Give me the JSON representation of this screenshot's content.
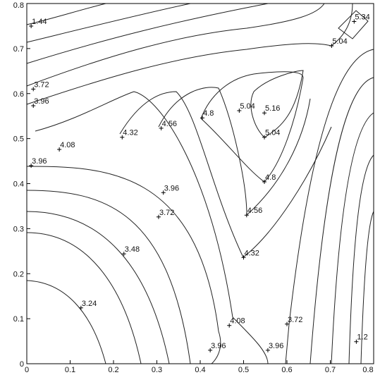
{
  "chart_data": {
    "type": "contour",
    "xlim": [
      0,
      0.8
    ],
    "ylim": [
      0,
      0.8
    ],
    "xticks": [
      0,
      0.1,
      0.2,
      0.3,
      0.4,
      0.5,
      0.6,
      0.7,
      0.8
    ],
    "yticks": [
      0,
      0.1,
      0.2,
      0.3,
      0.4,
      0.5,
      0.6,
      0.7,
      0.8
    ],
    "color": "#000000",
    "contour_labels": [
      {
        "x": 0.01,
        "y": 0.75,
        "level": 1.44
      },
      {
        "x": 0.015,
        "y": 0.61,
        "level": 3.72
      },
      {
        "x": 0.015,
        "y": 0.573,
        "level": 3.96
      },
      {
        "x": 0.075,
        "y": 0.476,
        "level": 4.08
      },
      {
        "x": 0.01,
        "y": 0.44,
        "level": 3.96
      },
      {
        "x": 0.22,
        "y": 0.503,
        "level": 4.32
      },
      {
        "x": 0.31,
        "y": 0.523,
        "level": 4.56
      },
      {
        "x": 0.405,
        "y": 0.546,
        "level": 4.8
      },
      {
        "x": 0.49,
        "y": 0.562,
        "level": 5.04
      },
      {
        "x": 0.548,
        "y": 0.557,
        "level": 5.16
      },
      {
        "x": 0.548,
        "y": 0.503,
        "level": 5.04
      },
      {
        "x": 0.548,
        "y": 0.404,
        "level": 4.8
      },
      {
        "x": 0.507,
        "y": 0.33,
        "level": 4.56
      },
      {
        "x": 0.5,
        "y": 0.236,
        "level": 4.32
      },
      {
        "x": 0.315,
        "y": 0.38,
        "level": 3.96
      },
      {
        "x": 0.304,
        "y": 0.326,
        "level": 3.72
      },
      {
        "x": 0.224,
        "y": 0.244,
        "level": 3.48
      },
      {
        "x": 0.125,
        "y": 0.124,
        "level": 3.24
      },
      {
        "x": 0.467,
        "y": 0.085,
        "level": 4.08
      },
      {
        "x": 0.423,
        "y": 0.03,
        "level": 3.96
      },
      {
        "x": 0.556,
        "y": 0.03,
        "level": 3.96
      },
      {
        "x": 0.6,
        "y": 0.088,
        "level": 3.72
      },
      {
        "x": 0.76,
        "y": 0.049,
        "level": 1.2
      },
      {
        "x": 0.703,
        "y": 0.706,
        "level": 5.04
      },
      {
        "x": 0.755,
        "y": 0.76,
        "level": 5.34
      }
    ]
  }
}
